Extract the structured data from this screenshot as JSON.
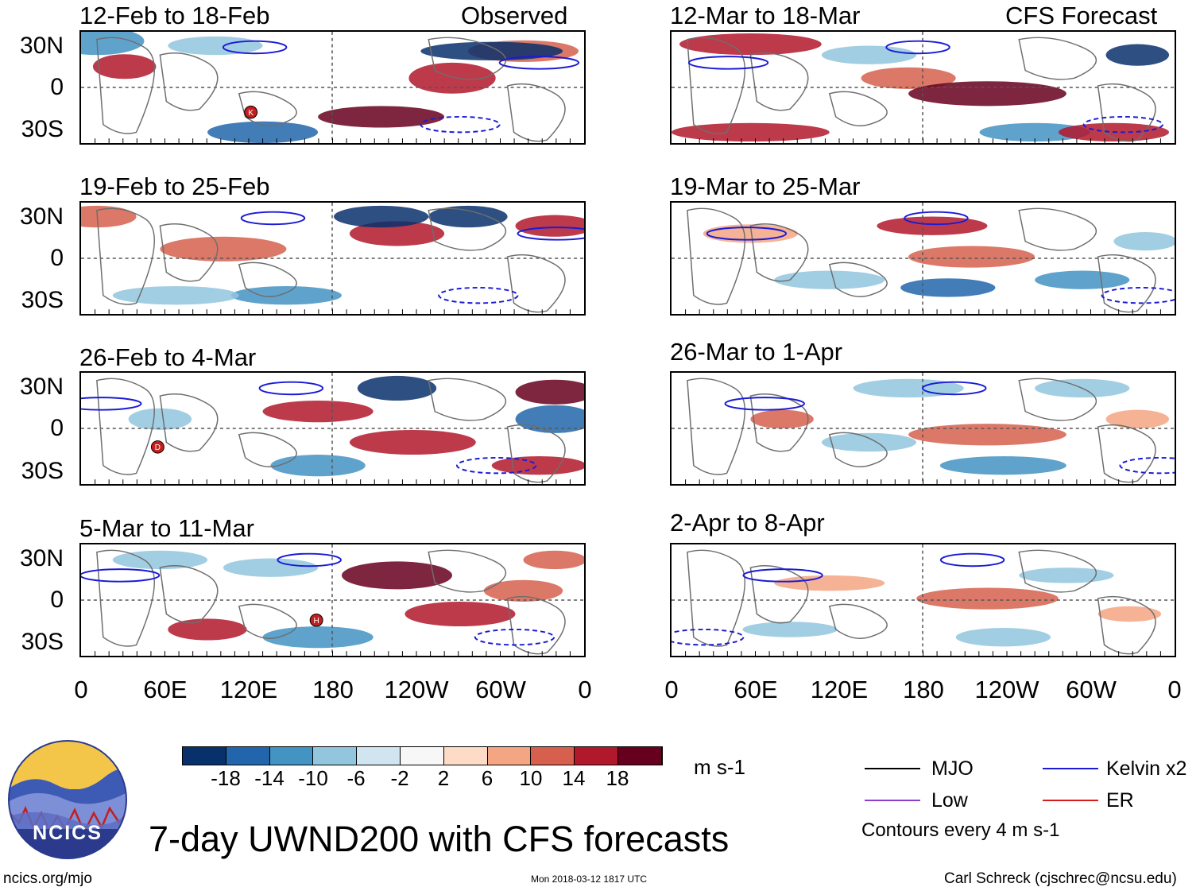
{
  "title": "7-day UWND200 with CFS forecasts",
  "labels": {
    "observed": "Observed",
    "forecast": "CFS Forecast"
  },
  "units": "m s-1",
  "footer": {
    "url": "ncics.org/mjo",
    "timestamp": "Mon 2018-03-12 1817 UTC",
    "author": "Carl Schreck (cjschrec@ncsu.edu)"
  },
  "logo": {
    "text": "NCICS"
  },
  "lat_labels": [
    "30N",
    "0",
    "30S"
  ],
  "lon_labels": [
    "0",
    "60E",
    "120E",
    "180",
    "120W",
    "60W",
    "0"
  ],
  "legend": {
    "items": [
      {
        "name": "MJO",
        "color": "#000000"
      },
      {
        "name": "Kelvin x2",
        "color": "#1b1bd6"
      },
      {
        "name": "Low",
        "color": "#8a3fd1"
      },
      {
        "name": "ER",
        "color": "#d81b1b"
      }
    ],
    "contours_note": "Contours every 4 m s-1"
  },
  "colorbar": {
    "colors": [
      "#08306b",
      "#2166ac",
      "#4393c3",
      "#92c5de",
      "#d1e5f0",
      "#f7f7f7",
      "#fddbc7",
      "#f4a582",
      "#d6604d",
      "#b2182b",
      "#67001f"
    ],
    "ticks": [
      "-18",
      "-14",
      "-10",
      "-6",
      "-2",
      "2",
      "6",
      "10",
      "14",
      "18"
    ]
  },
  "chart_data": {
    "type": "heatmap",
    "variable": "200-hPa zonal wind anomaly (7-day)",
    "x_axis": {
      "labels": [
        "0",
        "60E",
        "120E",
        "180",
        "120W",
        "60W",
        "0"
      ]
    },
    "y_axis": {
      "labels": [
        "30N",
        "0",
        "30S"
      ]
    },
    "panels": [
      {
        "id": "obs1",
        "title": "12-Feb to 18-Feb",
        "column": "Observed",
        "markers": [
          "K"
        ]
      },
      {
        "id": "obs2",
        "title": "19-Feb to 25-Feb",
        "column": "Observed",
        "markers": []
      },
      {
        "id": "obs3",
        "title": "26-Feb to 4-Mar",
        "column": "Observed",
        "markers": [
          "D"
        ]
      },
      {
        "id": "obs4",
        "title": "5-Mar to 11-Mar",
        "column": "Observed",
        "markers": [
          "H"
        ]
      },
      {
        "id": "fc1",
        "title": "12-Mar to 18-Mar",
        "column": "CFS Forecast",
        "markers": []
      },
      {
        "id": "fc2",
        "title": "19-Mar to 25-Mar",
        "column": "CFS Forecast",
        "markers": []
      },
      {
        "id": "fc3",
        "title": "26-Mar to 1-Apr",
        "column": "CFS Forecast",
        "markers": []
      },
      {
        "id": "fc4",
        "title": "2-Apr to 8-Apr",
        "column": "CFS Forecast",
        "markers": []
      }
    ]
  }
}
